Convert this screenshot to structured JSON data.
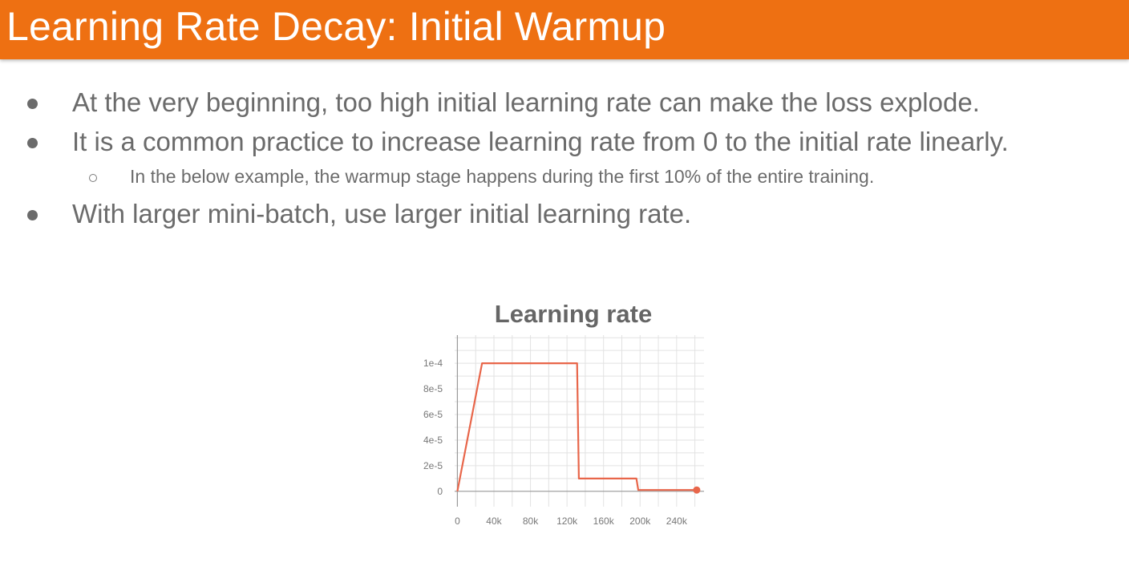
{
  "slide": {
    "title": "Learning Rate Decay: Initial Warmup",
    "accent_color": "#ee7012",
    "bullets": [
      "At the very beginning, too high initial learning rate can make the loss explode.",
      "It is a common practice to increase learning rate from 0 to the initial rate linearly.",
      "With larger mini-batch, use larger initial learning rate."
    ],
    "sub_bullet": "In the below example, the warmup stage happens during the first 10% of the entire training."
  },
  "chart_data": {
    "type": "line",
    "title": "Learning rate",
    "xlabel": "",
    "ylabel": "",
    "xlim": [
      -3000,
      270000
    ],
    "ylim": [
      -1.2e-05,
      0.000122
    ],
    "x_ticks": [
      0,
      40000,
      80000,
      120000,
      160000,
      200000,
      240000
    ],
    "x_tick_labels": [
      "0",
      "40k",
      "80k",
      "120k",
      "160k",
      "200k",
      "240k"
    ],
    "y_ticks": [
      0,
      2e-05,
      4e-05,
      6e-05,
      8e-05,
      0.0001
    ],
    "y_tick_labels": [
      "0",
      "2e-5",
      "4e-5",
      "6e-5",
      "8e-5",
      "1e-4"
    ],
    "grid": true,
    "series": [
      {
        "color": "#e8664a",
        "x": [
          0,
          27000,
          131000,
          133000,
          196000,
          198000,
          262000
        ],
        "y": [
          0,
          0.0001,
          0.0001,
          1e-05,
          1e-05,
          1e-06,
          1e-06
        ]
      }
    ]
  }
}
